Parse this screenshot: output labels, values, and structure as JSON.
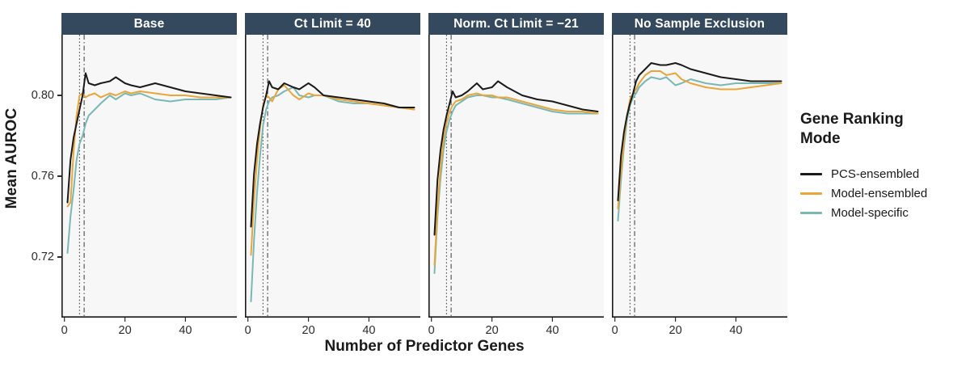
{
  "chart_data": {
    "type": "line",
    "xlabel": "Number of Predictor Genes",
    "ylabel": "Mean AUROC",
    "legend_title": "Gene Ranking Mode",
    "x_ticks": [
      0,
      20,
      40
    ],
    "y_ticks": [
      0.72,
      0.76,
      0.8
    ],
    "x_range": [
      -1,
      57
    ],
    "y_range": [
      0.69,
      0.83
    ],
    "grid": false,
    "legend_position": "right",
    "vlines": [
      {
        "x": 5,
        "style": "dotted"
      },
      {
        "x": 6.5,
        "style": "dashdot"
      }
    ],
    "colors": {
      "strip_bg": "#34495E",
      "strip_text": "#FFFFFF",
      "panel_bg": "#F7F7F7",
      "axis": "#1A1A1A",
      "vline": "#4A4A4A"
    },
    "series_meta": [
      {
        "name": "PCS-ensembled",
        "color": "#1A1A1A"
      },
      {
        "name": "Model-ensembled",
        "color": "#E9A63A"
      },
      {
        "name": "Model-specific",
        "color": "#79B8B5"
      }
    ],
    "x": [
      1,
      2,
      3,
      4,
      5,
      6,
      7,
      8,
      10,
      12,
      15,
      17,
      20,
      22,
      25,
      30,
      35,
      40,
      45,
      50,
      55
    ],
    "facets": [
      {
        "title": "Base",
        "series": {
          "PCS-ensembled": [
            0.747,
            0.768,
            0.779,
            0.786,
            0.793,
            0.8,
            0.811,
            0.806,
            0.805,
            0.806,
            0.807,
            0.809,
            0.806,
            0.805,
            0.804,
            0.806,
            0.804,
            0.802,
            0.801,
            0.8,
            0.799
          ],
          "Model-ensembled": [
            0.745,
            0.747,
            0.772,
            0.79,
            0.8,
            0.801,
            0.799,
            0.8,
            0.801,
            0.799,
            0.801,
            0.8,
            0.802,
            0.801,
            0.802,
            0.801,
            0.8,
            0.8,
            0.799,
            0.799,
            0.799
          ],
          "Model-specific": [
            0.722,
            0.74,
            0.753,
            0.768,
            0.776,
            0.78,
            0.786,
            0.79,
            0.793,
            0.796,
            0.8,
            0.798,
            0.801,
            0.8,
            0.801,
            0.798,
            0.797,
            0.798,
            0.798,
            0.798,
            0.799
          ]
        }
      },
      {
        "title": "Ct Limit = 40",
        "series": {
          "PCS-ensembled": [
            0.735,
            0.761,
            0.776,
            0.786,
            0.794,
            0.8,
            0.807,
            0.804,
            0.803,
            0.806,
            0.804,
            0.803,
            0.806,
            0.804,
            0.8,
            0.799,
            0.798,
            0.797,
            0.796,
            0.794,
            0.794
          ],
          "Model-ensembled": [
            0.721,
            0.748,
            0.768,
            0.784,
            0.795,
            0.8,
            0.799,
            0.797,
            0.803,
            0.805,
            0.8,
            0.798,
            0.801,
            0.8,
            0.8,
            0.798,
            0.797,
            0.796,
            0.795,
            0.794,
            0.793
          ],
          "Model-specific": [
            0.698,
            0.728,
            0.752,
            0.77,
            0.785,
            0.793,
            0.797,
            0.799,
            0.8,
            0.802,
            0.804,
            0.8,
            0.799,
            0.8,
            0.8,
            0.797,
            0.796,
            0.796,
            0.795,
            0.794,
            0.793
          ]
        }
      },
      {
        "title": "Norm. Ct Limit = −21",
        "series": {
          "PCS-ensembled": [
            0.731,
            0.758,
            0.773,
            0.783,
            0.79,
            0.796,
            0.802,
            0.799,
            0.8,
            0.802,
            0.806,
            0.803,
            0.804,
            0.807,
            0.804,
            0.8,
            0.798,
            0.797,
            0.795,
            0.793,
            0.792
          ],
          "Model-ensembled": [
            0.716,
            0.744,
            0.764,
            0.778,
            0.786,
            0.792,
            0.795,
            0.797,
            0.798,
            0.8,
            0.801,
            0.8,
            0.8,
            0.799,
            0.799,
            0.797,
            0.795,
            0.793,
            0.792,
            0.792,
            0.791
          ],
          "Model-specific": [
            0.712,
            0.74,
            0.759,
            0.773,
            0.782,
            0.788,
            0.792,
            0.795,
            0.797,
            0.799,
            0.8,
            0.8,
            0.799,
            0.799,
            0.798,
            0.796,
            0.794,
            0.792,
            0.791,
            0.791,
            0.791
          ]
        }
      },
      {
        "title": "No Sample Exclusion",
        "series": {
          "PCS-ensembled": [
            0.748,
            0.77,
            0.782,
            0.79,
            0.796,
            0.801,
            0.807,
            0.81,
            0.813,
            0.816,
            0.815,
            0.815,
            0.816,
            0.815,
            0.813,
            0.811,
            0.809,
            0.808,
            0.807,
            0.807,
            0.807
          ],
          "Model-ensembled": [
            0.744,
            0.762,
            0.778,
            0.79,
            0.798,
            0.801,
            0.803,
            0.806,
            0.81,
            0.812,
            0.812,
            0.81,
            0.811,
            0.808,
            0.806,
            0.804,
            0.803,
            0.803,
            0.804,
            0.805,
            0.806
          ],
          "Model-specific": [
            0.738,
            0.758,
            0.775,
            0.788,
            0.795,
            0.799,
            0.801,
            0.804,
            0.807,
            0.809,
            0.808,
            0.809,
            0.805,
            0.806,
            0.808,
            0.806,
            0.805,
            0.806,
            0.806,
            0.806,
            0.806
          ]
        }
      }
    ]
  }
}
